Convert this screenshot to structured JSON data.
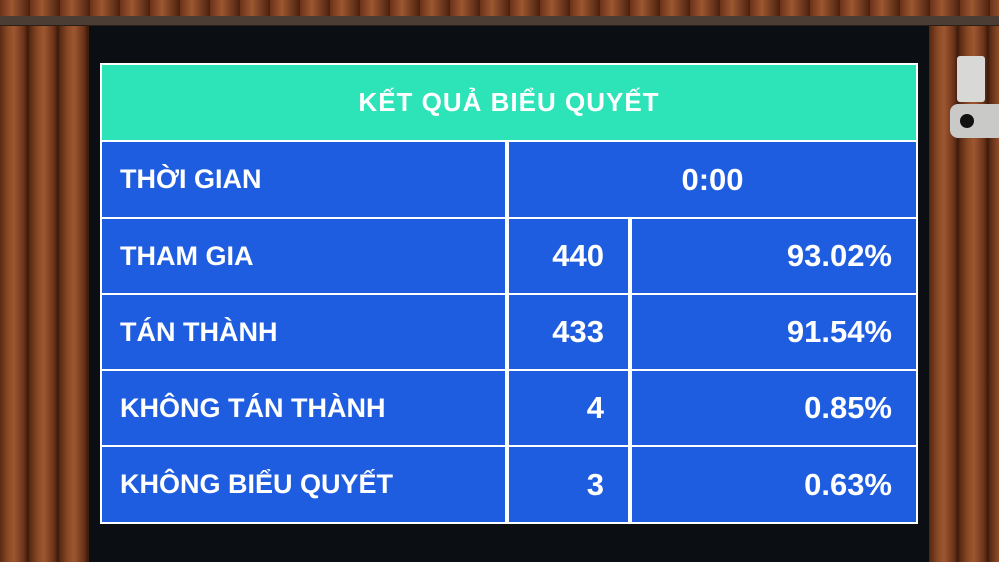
{
  "title": "KẾT QUẢ BIỂU QUYẾT",
  "time": {
    "label": "THỜI GIAN",
    "value": "0:00"
  },
  "rows": [
    {
      "label": "THAM GIA",
      "count": "440",
      "percent": "93.02%"
    },
    {
      "label": "TÁN THÀNH",
      "count": "433",
      "percent": "91.54%"
    },
    {
      "label": "KHÔNG TÁN THÀNH",
      "count": "4",
      "percent": "0.85%"
    },
    {
      "label": "KHÔNG BIỂU QUYẾT",
      "count": "3",
      "percent": "0.63%"
    }
  ],
  "colors": {
    "header": "#2de3b8",
    "cells": "#1f5de0",
    "text": "#ffffff"
  }
}
